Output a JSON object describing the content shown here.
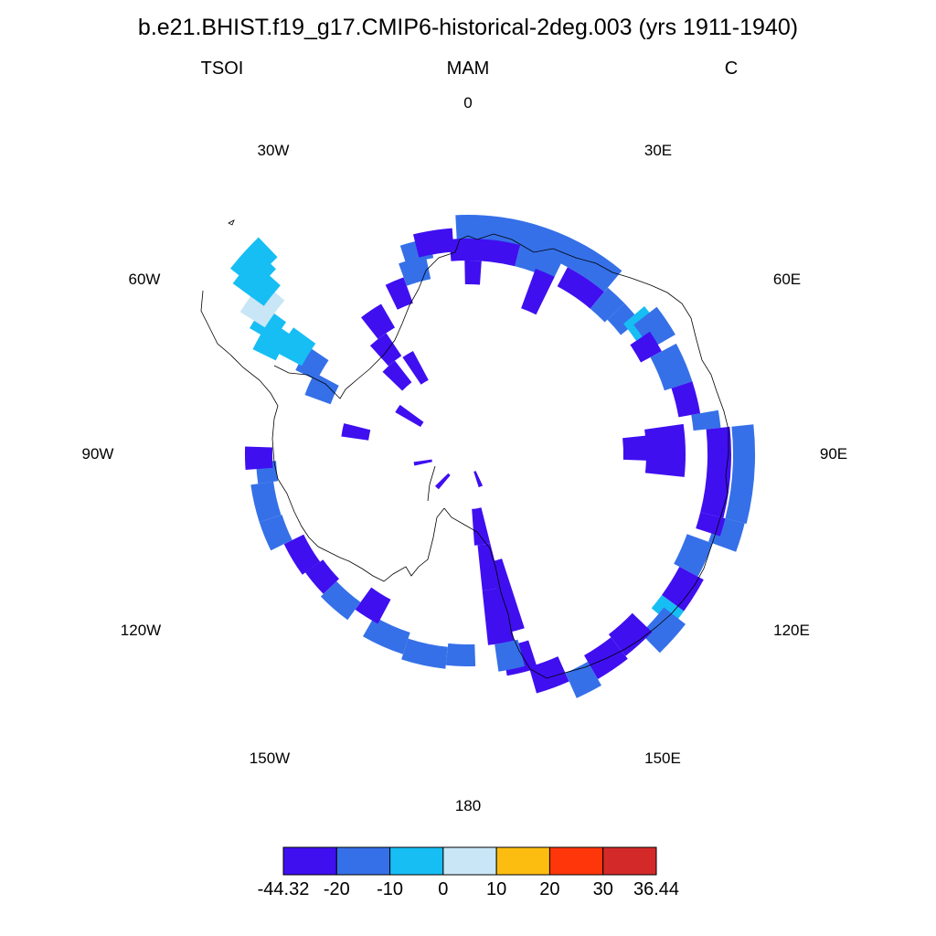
{
  "title": "b.e21.BHIST.f19_g17.CMIP6-historical-2deg.003 (yrs 1911-1940)",
  "left_label": "TSOI",
  "center_label": "MAM",
  "right_label": "C",
  "longitude_labels": {
    "lon_0": "0",
    "lon_30e": "30E",
    "lon_60e": "60E",
    "lon_90e": "90E",
    "lon_120e": "120E",
    "lon_150e": "150E",
    "lon_180": "180",
    "lon_150w": "150W",
    "lon_120w": "120W",
    "lon_90w": "90W",
    "lon_60w": "60W",
    "lon_30w": "30W"
  },
  "colorbar": {
    "colors": [
      "#3f0ff0",
      "#3570e8",
      "#16bef4",
      "#c9e6f7",
      "#fdbd10",
      "#ff360a",
      "#d32a29"
    ],
    "labels": [
      "-44.32",
      "-20",
      "-10",
      "0",
      "10",
      "20",
      "30",
      "36.44"
    ]
  },
  "colors": {
    "coast": "#000000",
    "cell_edge": "none"
  }
}
